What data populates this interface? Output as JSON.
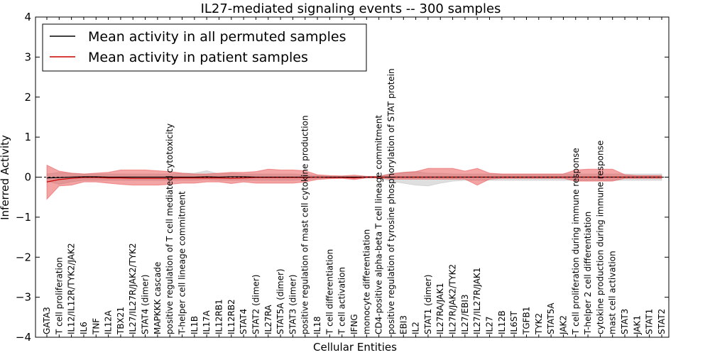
{
  "chart_data": {
    "type": "line",
    "title": "IL27-mediated signaling events -- 300 samples",
    "xlabel": "Cellular Entities",
    "ylabel": "Inferred Activity",
    "ylim": [
      -4,
      4
    ],
    "yticks": [
      -4,
      -3,
      -2,
      -1,
      0,
      1,
      2,
      3,
      4
    ],
    "grid": false,
    "legend_position": "top-left",
    "categories": [
      "GATA3",
      "T cell proliferation",
      "IL12/IL12R/TYK2/JAK2",
      "IL6",
      "TNF",
      "IL12A",
      "TBX21",
      "IL27/IL27R/JAK2/TYK2",
      "STAT4 (dimer)",
      "MAPKKK cascade",
      "positive regulation of T cell mediated cytotoxicity",
      "T-helper cell lineage commitment",
      "IL1B",
      "IL17A",
      "IL12RB1",
      "IL12RB2",
      "STAT4",
      "STAT2 (dimer)",
      "IL27RA",
      "STAT5A (dimer)",
      "STAT3 (dimer)",
      "positive regulation of mast cell cytokine production",
      "IL18",
      "T cell differentiation",
      "T cell activation",
      "IFNG",
      "monocyte differentiation",
      "CD4-positive alpha-beta T cell lineage commitment",
      "positive regulation of tyrosine phosphorylation of STAT protein",
      "EBI3",
      "IL2",
      "STAT1 (dimer)",
      "IL27RA/JAK1",
      "IL27R/JAK2/TYK2",
      "IL27/EBI3",
      "IL27/IL27R/JAK1",
      "IL27",
      "IL12B",
      "IL6ST",
      "TGFB1",
      "TYK2",
      "STAT5A",
      "JAK2",
      "T cell proliferation during immune response",
      "T-helper 2 cell differentiation",
      "cytokine production during immune response",
      "mast cell activation",
      "STAT3",
      "JAK1",
      "STAT1",
      "STAT2"
    ],
    "series": [
      {
        "name": "Mean activity in all permuted samples",
        "color": "#000000",
        "values": [
          -0.02,
          -0.01,
          0.0,
          0.01,
          0.01,
          0.0,
          0.0,
          0.0,
          0.0,
          0.0,
          0.0,
          0.0,
          0.0,
          0.01,
          0.0,
          0.01,
          0.01,
          0.0,
          0.0,
          0.0,
          0.0,
          0.0,
          0.0,
          0.0,
          0.0,
          0.0,
          0.0,
          0.0,
          0.0,
          0.0,
          0.0,
          0.0,
          0.0,
          0.0,
          0.0,
          0.0,
          0.0,
          0.0,
          0.0,
          0.0,
          0.0,
          0.0,
          0.0,
          0.0,
          0.0,
          0.0,
          0.0,
          0.0,
          0.0,
          0.0,
          0.0
        ],
        "band_lower": [
          -0.1,
          -0.18,
          -0.12,
          -0.08,
          -0.08,
          -0.08,
          -0.08,
          -0.08,
          -0.08,
          -0.08,
          -0.08,
          -0.08,
          -0.08,
          -0.06,
          -0.08,
          -0.08,
          -0.08,
          -0.08,
          -0.08,
          -0.08,
          -0.08,
          -0.06,
          -0.04,
          -0.02,
          -0.02,
          -0.02,
          -0.02,
          -0.02,
          -0.1,
          -0.15,
          -0.2,
          -0.22,
          -0.15,
          -0.1,
          -0.08,
          -0.08,
          -0.08,
          -0.08,
          -0.08,
          -0.08,
          -0.08,
          -0.08,
          -0.08,
          -0.08,
          -0.08,
          -0.08,
          -0.08,
          -0.08,
          -0.08,
          -0.08,
          -0.08
        ],
        "band_upper": [
          0.08,
          0.12,
          0.1,
          0.08,
          0.08,
          0.08,
          0.08,
          0.08,
          0.08,
          0.08,
          0.08,
          0.1,
          0.1,
          0.16,
          0.08,
          0.1,
          0.08,
          0.08,
          0.08,
          0.08,
          0.08,
          0.06,
          0.04,
          0.02,
          0.02,
          0.02,
          0.02,
          0.02,
          0.1,
          0.12,
          0.14,
          0.1,
          0.1,
          0.08,
          0.08,
          0.08,
          0.08,
          0.08,
          0.08,
          0.08,
          0.08,
          0.08,
          0.08,
          0.08,
          0.08,
          0.08,
          0.08,
          0.08,
          0.08,
          0.08,
          0.08
        ]
      },
      {
        "name": "Mean activity in patient samples",
        "color": "#cc0000",
        "fill": "#e84a4a",
        "values": [
          -0.12,
          -0.06,
          -0.03,
          -0.01,
          -0.01,
          -0.02,
          -0.02,
          -0.03,
          -0.03,
          -0.03,
          -0.03,
          -0.02,
          -0.02,
          -0.02,
          -0.02,
          -0.03,
          -0.02,
          -0.01,
          -0.01,
          -0.01,
          -0.01,
          -0.01,
          0.0,
          -0.01,
          -0.01,
          -0.02,
          0.0,
          0.0,
          0.0,
          0.0,
          0.0,
          0.0,
          0.0,
          0.0,
          0.0,
          0.0,
          0.0,
          0.0,
          0.0,
          0.0,
          0.0,
          0.0,
          0.0,
          0.0,
          0.0,
          0.0,
          0.0,
          0.0,
          0.0,
          0.0,
          0.0
        ],
        "band_lower": [
          -0.55,
          -0.22,
          -0.2,
          -0.12,
          -0.12,
          -0.15,
          -0.18,
          -0.2,
          -0.2,
          -0.2,
          -0.18,
          -0.15,
          -0.15,
          -0.12,
          -0.12,
          -0.16,
          -0.12,
          -0.15,
          -0.15,
          -0.15,
          -0.15,
          -0.12,
          -0.06,
          -0.04,
          -0.03,
          -0.06,
          -0.02,
          -0.02,
          -0.05,
          -0.05,
          -0.05,
          -0.05,
          -0.05,
          -0.05,
          -0.05,
          -0.2,
          -0.05,
          -0.03,
          -0.03,
          -0.03,
          -0.03,
          -0.03,
          -0.03,
          -0.1,
          -0.1,
          -0.1,
          -0.1,
          -0.03,
          -0.03,
          -0.03,
          -0.03
        ],
        "band_upper": [
          0.3,
          0.15,
          0.1,
          0.08,
          0.1,
          0.12,
          0.18,
          0.18,
          0.18,
          0.16,
          0.14,
          0.1,
          0.08,
          0.08,
          0.1,
          0.12,
          0.12,
          0.14,
          0.2,
          0.18,
          0.18,
          0.16,
          0.06,
          0.04,
          0.03,
          0.05,
          0.02,
          0.02,
          0.08,
          0.12,
          0.14,
          0.22,
          0.22,
          0.22,
          0.15,
          0.22,
          0.1,
          0.08,
          0.08,
          0.08,
          0.08,
          0.08,
          0.08,
          0.18,
          0.2,
          0.2,
          0.2,
          0.06,
          0.04,
          0.04,
          0.04
        ]
      }
    ]
  }
}
